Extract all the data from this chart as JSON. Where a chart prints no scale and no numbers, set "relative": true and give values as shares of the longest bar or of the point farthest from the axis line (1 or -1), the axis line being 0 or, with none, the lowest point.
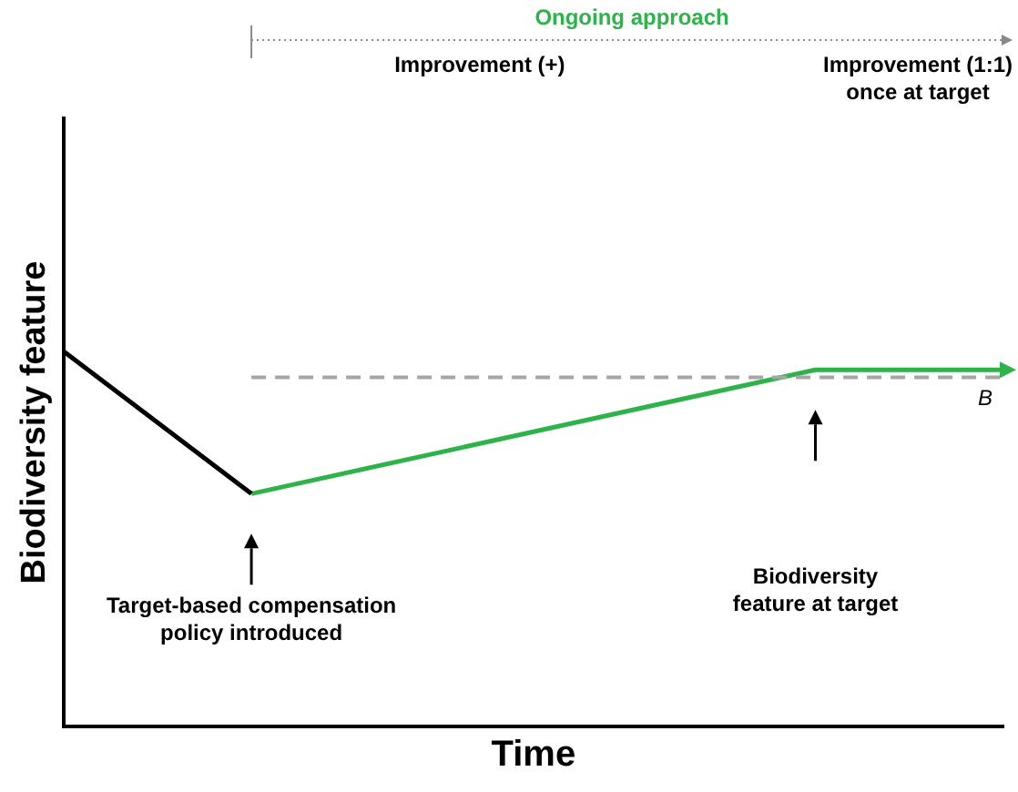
{
  "chart_data": {
    "type": "line",
    "relative": true,
    "xlabel": "Time",
    "ylabel": "Biodiversity feature",
    "categories": [
      null,
      null,
      null,
      null,
      null,
      null,
      null,
      null,
      null,
      null,
      null,
      null,
      null,
      null,
      null,
      null,
      null,
      null,
      null,
      null,
      null
    ],
    "tick_labels": false,
    "grid": false,
    "legend": false,
    "marker": "none",
    "line_style": "solid",
    "series": [
      {
        "color": "#000000",
        "values": [
          1,
          null,
          null,
          null,
          0.62,
          null,
          null,
          null,
          null,
          null,
          null,
          null,
          null,
          null,
          null,
          null,
          null,
          null,
          null,
          null,
          null
        ]
      },
      {
        "color": "#2db34a",
        "values": [
          null,
          null,
          null,
          null,
          0.62,
          null,
          null,
          null,
          null,
          null,
          null,
          null,
          null,
          null,
          null,
          null,
          0.95,
          null,
          null,
          null,
          0.95
        ]
      }
    ],
    "ref_lines": [
      {
        "axis": "y",
        "value": 0.93,
        "label": "B",
        "color": "#a6a6a6",
        "line_style": "dashed"
      }
    ],
    "annotations": [
      "Ongoing approach",
      "Improvement (+)",
      "Improvement (1:1)\nonce at target",
      "Target-based compensation\npolicy introduced",
      "Biodiversity\nfeature at target"
    ]
  }
}
